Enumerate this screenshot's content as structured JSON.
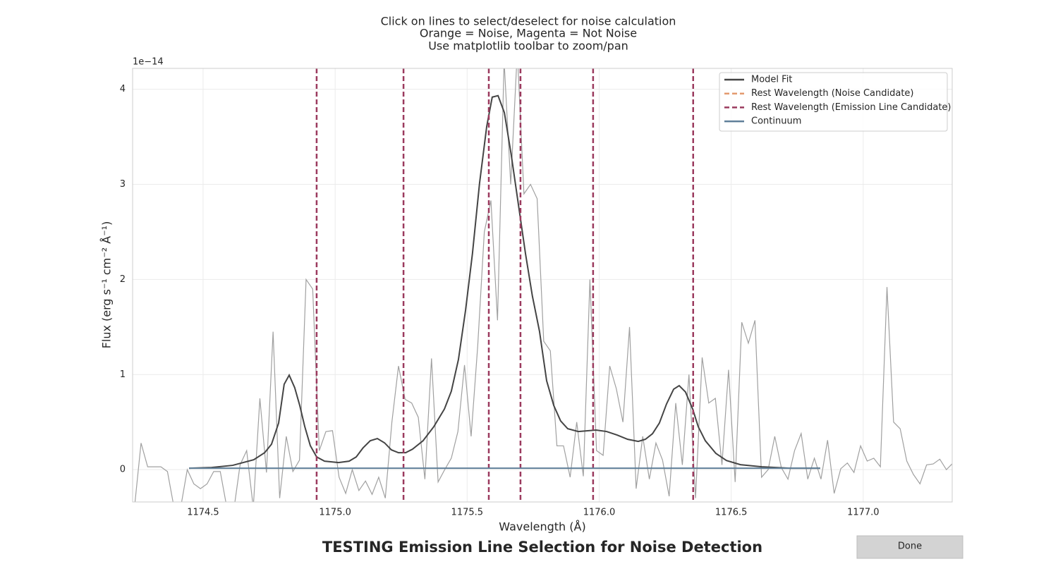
{
  "chart_data": {
    "type": "line",
    "title": [
      "Click on lines to select/deselect for noise calculation",
      "Orange = Noise, Magenta = Not Noise",
      "Use matplotlib toolbar to zoom/pan"
    ],
    "xlabel": "Wavelength (Å)",
    "ylabel": "Flux (erg s⁻¹ cm⁻² Å⁻¹)",
    "y_offset_label": "1e−14",
    "figure_title": "TESTING Emission Line Selection for Noise Detection",
    "xlim": [
      1174.233,
      1177.337
    ],
    "ylim": [
      -0.34,
      4.22
    ],
    "xticks": [
      1174.5,
      {
        "value": 1175,
        "label": "1175.0"
      },
      1175.5,
      {
        "value": 1176,
        "label": "1176.0"
      },
      1176.5,
      {
        "value": 1177,
        "label": "1177.0"
      }
    ],
    "yticks": [
      0,
      1,
      2,
      3,
      4
    ],
    "grid": true,
    "legend": "upper right",
    "series": [
      {
        "name": "Model Fit",
        "color": "#444444",
        "style": "solid",
        "x": [
          1174.447,
          1174.532,
          1174.612,
          1174.692,
          1174.733,
          1174.759,
          1174.786,
          1174.807,
          1174.826,
          1174.847,
          1174.866,
          1174.885,
          1174.906,
          1174.93,
          1174.96,
          1175.013,
          1175.053,
          1175.08,
          1175.106,
          1175.133,
          1175.16,
          1175.187,
          1175.213,
          1175.24,
          1175.267,
          1175.293,
          1175.333,
          1175.374,
          1175.414,
          1175.44,
          1175.467,
          1175.494,
          1175.52,
          1175.547,
          1175.574,
          1175.595,
          1175.617,
          1175.641,
          1175.667,
          1175.694,
          1175.721,
          1175.747,
          1175.774,
          1175.801,
          1175.828,
          1175.854,
          1175.881,
          1175.921,
          1175.988,
          1176.028,
          1176.068,
          1176.108,
          1176.148,
          1176.175,
          1176.202,
          1176.228,
          1176.255,
          1176.282,
          1176.303,
          1176.327,
          1176.354,
          1176.375,
          1176.402,
          1176.442,
          1176.482,
          1176.535,
          1176.616,
          1176.722,
          1176.837
        ],
        "values": [
          0.015,
          0.022,
          0.045,
          0.104,
          0.178,
          0.267,
          0.49,
          0.898,
          0.994,
          0.861,
          0.675,
          0.453,
          0.252,
          0.134,
          0.089,
          0.074,
          0.089,
          0.134,
          0.23,
          0.304,
          0.327,
          0.282,
          0.208,
          0.178,
          0.178,
          0.215,
          0.304,
          0.453,
          0.638,
          0.824,
          1.158,
          1.677,
          2.271,
          3.013,
          3.607,
          3.918,
          3.933,
          3.755,
          3.31,
          2.79,
          2.271,
          1.826,
          1.455,
          0.935,
          0.675,
          0.512,
          0.43,
          0.401,
          0.416,
          0.401,
          0.364,
          0.319,
          0.297,
          0.319,
          0.378,
          0.49,
          0.69,
          0.846,
          0.883,
          0.816,
          0.638,
          0.453,
          0.304,
          0.171,
          0.096,
          0.052,
          0.03,
          0.015,
          0.015
        ]
      },
      {
        "name": "Rest Wavelength (Noise Candidate)",
        "color": "#e39a6e",
        "style": "dashed",
        "x": []
      },
      {
        "name": "Rest Wavelength (Emission Line Candidate)",
        "color": "#9b3a5e",
        "style": "dashed",
        "x": [
          1174.93,
          1175.259,
          1175.582,
          1175.702,
          1175.977,
          1176.356
        ]
      },
      {
        "name": "Continuum",
        "color": "#5f7f99",
        "style": "solid",
        "x": [
          1174.447,
          1176.837
        ],
        "values": [
          0.015,
          0.015
        ]
      },
      {
        "color": "#a0a0a0",
        "style": "solid",
        "x": [
          1174.24,
          1174.265,
          1174.29,
          1174.315,
          1174.34,
          1174.365,
          1174.39,
          1174.415,
          1174.44,
          1174.465,
          1174.49,
          1174.515,
          1174.54,
          1174.565,
          1174.59,
          1174.615,
          1174.64,
          1174.665,
          1174.69,
          1174.715,
          1174.74,
          1174.765,
          1174.79,
          1174.815,
          1174.84,
          1174.865,
          1174.89,
          1174.915,
          1174.94,
          1174.965,
          1174.99,
          1175.015,
          1175.04,
          1175.065,
          1175.09,
          1175.115,
          1175.14,
          1175.165,
          1175.19,
          1175.215,
          1175.24,
          1175.265,
          1175.29,
          1175.315,
          1175.34,
          1175.365,
          1175.39,
          1175.415,
          1175.44,
          1175.465,
          1175.49,
          1175.515,
          1175.54,
          1175.565,
          1175.59,
          1175.615,
          1175.64,
          1175.665,
          1175.69,
          1175.715,
          1175.74,
          1175.765,
          1175.79,
          1175.815,
          1175.84,
          1175.865,
          1175.89,
          1175.915,
          1175.94,
          1175.965,
          1175.99,
          1176.015,
          1176.04,
          1176.065,
          1176.09,
          1176.115,
          1176.14,
          1176.165,
          1176.19,
          1176.215,
          1176.24,
          1176.265,
          1176.29,
          1176.315,
          1176.34,
          1176.365,
          1176.39,
          1176.415,
          1176.44,
          1176.465,
          1176.49,
          1176.515,
          1176.54,
          1176.565,
          1176.59,
          1176.615,
          1176.64,
          1176.665,
          1176.69,
          1176.715,
          1176.74,
          1176.765,
          1176.79,
          1176.815,
          1176.84,
          1176.865,
          1176.89,
          1176.915,
          1176.94,
          1176.965,
          1176.99,
          1177.015,
          1177.04,
          1177.065,
          1177.09,
          1177.115,
          1177.14,
          1177.165,
          1177.19,
          1177.215,
          1177.24,
          1177.265,
          1177.29,
          1177.315,
          1177.34
        ],
        "values": [
          -0.4,
          0.28,
          0.03,
          0.03,
          0.03,
          -0.02,
          -0.4,
          -0.4,
          0.0,
          -0.15,
          -0.2,
          -0.15,
          -0.02,
          -0.02,
          -0.4,
          -0.45,
          0.05,
          0.2,
          -0.4,
          0.75,
          -0.03,
          1.45,
          -0.3,
          0.35,
          -0.02,
          0.1,
          2.0,
          1.9,
          0.2,
          0.4,
          0.41,
          -0.08,
          -0.25,
          0.0,
          -0.22,
          -0.12,
          -0.26,
          -0.08,
          -0.3,
          0.5,
          1.09,
          0.74,
          0.7,
          0.55,
          -0.1,
          1.17,
          -0.13,
          0.0,
          0.12,
          0.4,
          1.1,
          0.35,
          1.3,
          2.5,
          2.83,
          1.57,
          4.3,
          3.0,
          4.4,
          2.9,
          3.0,
          2.85,
          1.35,
          1.25,
          0.25,
          0.25,
          -0.08,
          0.5,
          -0.07,
          2.0,
          0.2,
          0.15,
          1.09,
          0.85,
          0.5,
          1.5,
          -0.2,
          0.35,
          -0.1,
          0.28,
          0.1,
          -0.28,
          0.7,
          0.05,
          1.0,
          -0.3,
          1.18,
          0.7,
          0.75,
          0.05,
          1.05,
          -0.13,
          1.55,
          1.33,
          1.57,
          -0.08,
          0.0,
          0.35,
          0.02,
          -0.1,
          0.2,
          0.38,
          -0.1,
          0.12,
          -0.1,
          0.31,
          -0.25,
          0.01,
          0.07,
          -0.03,
          0.25,
          0.09,
          0.12,
          0.03,
          1.92,
          0.5,
          0.43,
          0.09,
          -0.05,
          -0.15,
          0.05,
          0.06,
          0.11,
          0.0,
          0.07
        ]
      }
    ]
  },
  "done_button": "Done"
}
